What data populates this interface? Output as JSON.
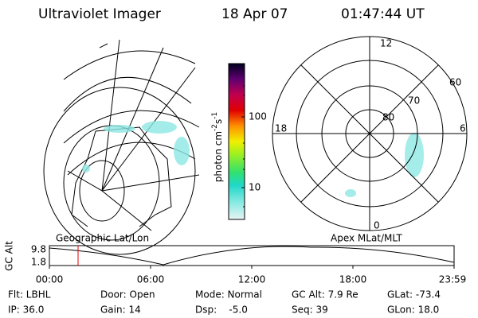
{
  "header": {
    "instrument": "Ultraviolet Imager",
    "date": "18 Apr 07",
    "time": "01:47:44 UT"
  },
  "colorbar": {
    "ticks": [
      "100",
      "10"
    ],
    "unit": {
      "base": "photon cm",
      "exp1": "-2",
      "mid": "s",
      "exp2": "-1"
    }
  },
  "polar": {
    "mlt": [
      "12",
      "18",
      "6",
      "0"
    ],
    "mlat": [
      "60",
      "70",
      "80"
    ]
  },
  "panels": {
    "left": "Geographic Lat/Lon",
    "right": "Apex MLat/MLT"
  },
  "altitude": {
    "label": "GC Alt",
    "ticks": [
      "9.8",
      "1.8"
    ],
    "times": [
      "00:00",
      "06:00",
      "12:00",
      "18:00",
      "23:59"
    ]
  },
  "footer": {
    "rows": [
      [
        "Flt: LBHL",
        "Door: Open",
        "Mode: Normal",
        "GC Alt: 7.9 Re",
        "GLat: -73.4"
      ],
      [
        "IP: 36.0",
        "Gain: 14",
        "Dsp:    -5.0",
        "Seq: 39",
        "GLon: 18.0"
      ]
    ]
  }
}
